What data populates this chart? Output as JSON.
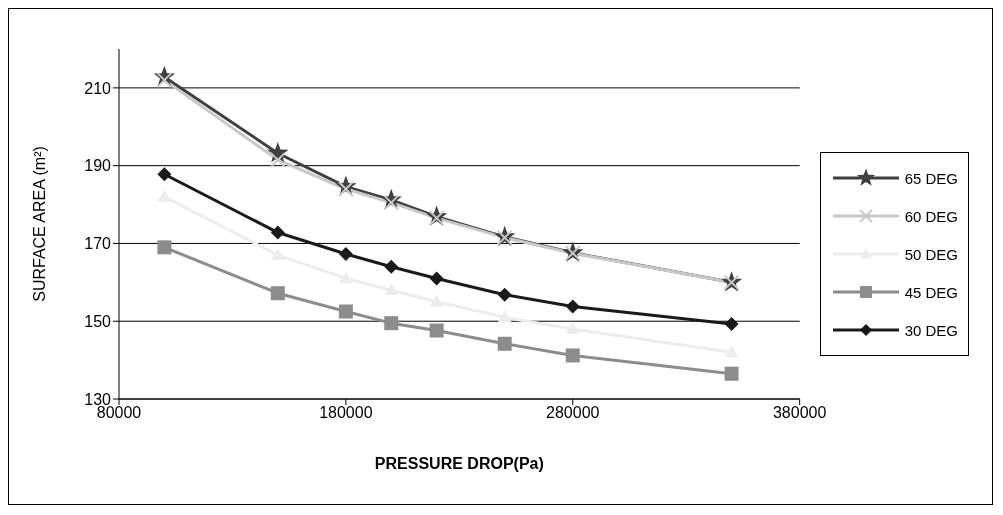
{
  "chart_data": {
    "type": "line",
    "xlabel": "PRESSURE DROP(Pa)",
    "ylabel": "SURFACE AREA (m²)",
    "x": [
      100000,
      150000,
      180000,
      200000,
      220000,
      250000,
      280000,
      350000
    ],
    "series": [
      {
        "name": "65 DEG",
        "color": "#404040",
        "marker": "star",
        "values": [
          212.8,
          193.2,
          184.6,
          181.2,
          176.9,
          171.7,
          167.6,
          160
        ]
      },
      {
        "name": "60 DEG",
        "color": "#c8c8c8",
        "marker": "cross",
        "values": [
          212,
          191.5,
          184,
          180.5,
          176.5,
          171.5,
          167.5,
          160
        ]
      },
      {
        "name": "50 DEG",
        "color": "#ececec",
        "marker": "triangle",
        "values": [
          182,
          167,
          161,
          158,
          155,
          151,
          148,
          142
        ]
      },
      {
        "name": "45 DEG",
        "color": "#8c8c8c",
        "marker": "square",
        "values": [
          169,
          157.2,
          152.5,
          149.5,
          147.6,
          144.2,
          141.2,
          136.5
        ]
      },
      {
        "name": "30 DEG",
        "color": "#1a1a1a",
        "marker": "diamond",
        "values": [
          187.8,
          172.8,
          167.3,
          164,
          161,
          156.8,
          153.8,
          149.3
        ]
      }
    ],
    "xlim": [
      80000,
      380000
    ],
    "xticks": [
      80000,
      180000,
      280000,
      380000
    ],
    "ylim": [
      130,
      220
    ],
    "yticks": [
      130,
      150,
      170,
      190,
      210
    ],
    "grid": "y",
    "legend": "right",
    "line_style": "solid"
  }
}
